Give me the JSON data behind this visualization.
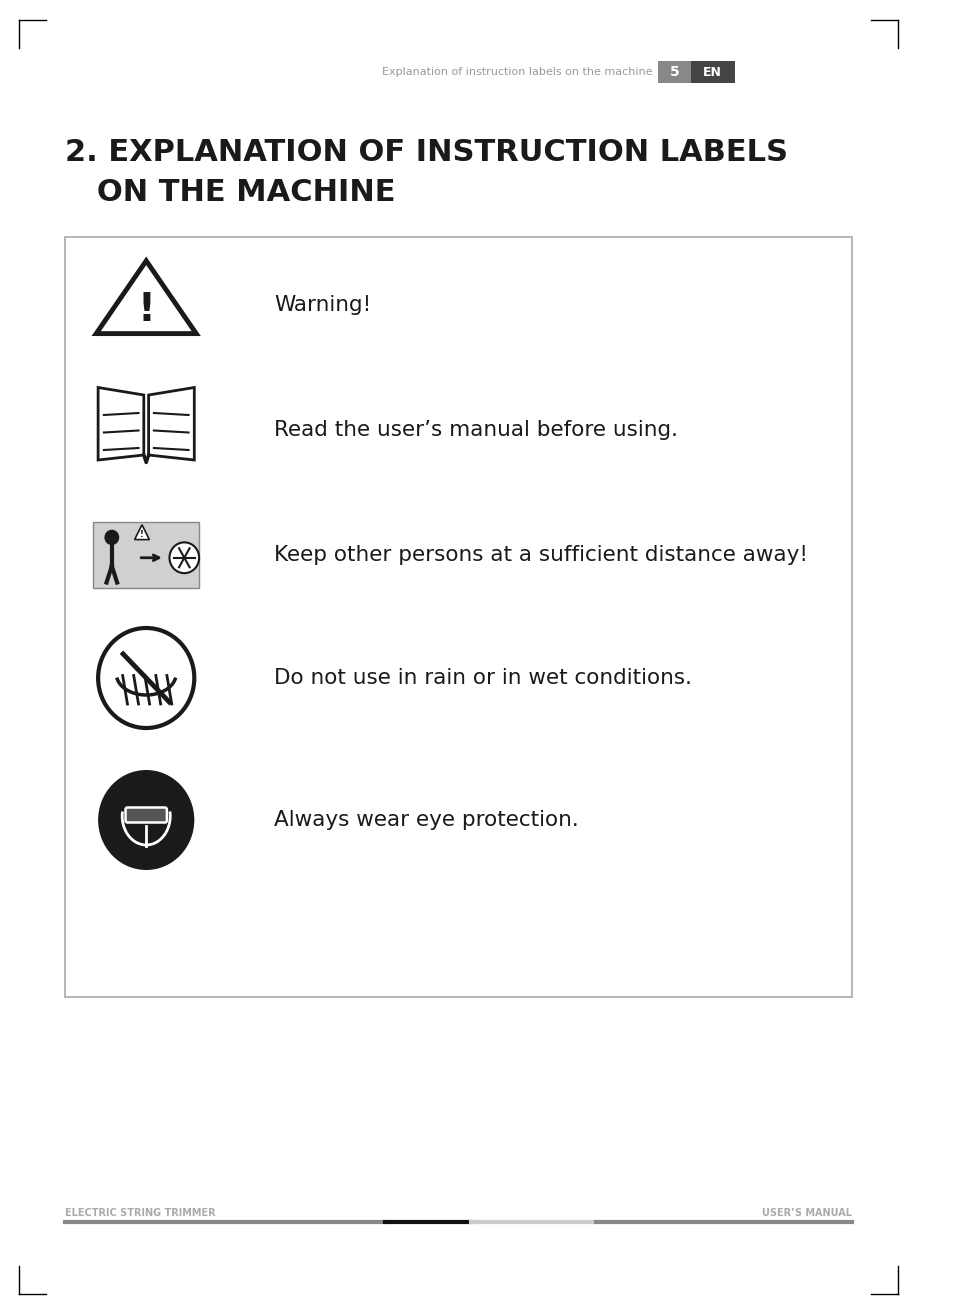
{
  "bg_color": "#ffffff",
  "header_text": "Explanation of instruction labels on the machine",
  "header_page_num": "5",
  "header_lang": "EN",
  "header_page_bg": "#888888",
  "header_lang_bg": "#444444",
  "title_line1": "2. EXPLANATION OF INSTRUCTION LABELS",
  "title_line2": "   ON THE MACHINE",
  "title_fontsize": 22,
  "title_color": "#1a1a1a",
  "footer_left": "ELECTRIC STRING TRIMMER",
  "footer_right": "USER’S MANUAL",
  "footer_color": "#aaaaaa",
  "footer_fontsize": 7,
  "box_border_color": "#aaaaaa",
  "items": [
    {
      "icon_type": "warning_triangle",
      "label": "Warning!"
    },
    {
      "icon_type": "open_book",
      "label": "Read the user’s manual before using."
    },
    {
      "icon_type": "distance_photo",
      "label": "Keep other persons at a sufficient distance away!"
    },
    {
      "icon_type": "no_rain",
      "label": "Do not use in rain or in wet conditions."
    },
    {
      "icon_type": "eye_protection",
      "label": "Always wear eye protection."
    }
  ]
}
